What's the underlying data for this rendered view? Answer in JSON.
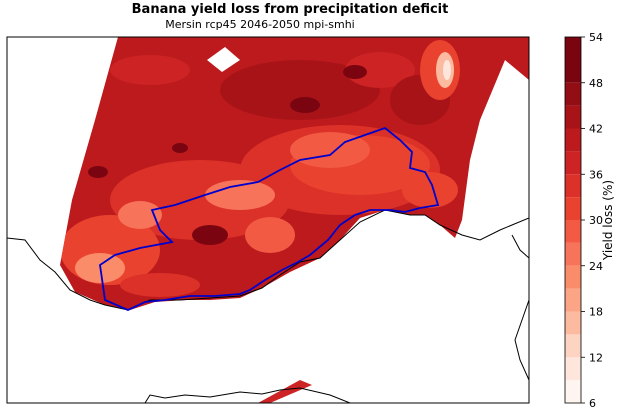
{
  "title": "Banana yield loss from precipitation deficit",
  "subtitle": "Mersin rcp45 2046-2050 mpi-smhi",
  "colorbar": {
    "label": "Yield loss (%)",
    "ticks": [
      "6",
      "12",
      "18",
      "24",
      "30",
      "36",
      "42",
      "48",
      "54"
    ],
    "levels": [
      {
        "from": 6,
        "to": 9,
        "color": "#fff5f0"
      },
      {
        "from": 9,
        "to": 12,
        "color": "#fee6dc"
      },
      {
        "from": 12,
        "to": 15,
        "color": "#fdd3c1"
      },
      {
        "from": 15,
        "to": 18,
        "color": "#fcbba1"
      },
      {
        "from": 18,
        "to": 21,
        "color": "#fca486"
      },
      {
        "from": 21,
        "to": 24,
        "color": "#fb8c6a"
      },
      {
        "from": 24,
        "to": 27,
        "color": "#f7735a"
      },
      {
        "from": 27,
        "to": 30,
        "color": "#f25a44"
      },
      {
        "from": 30,
        "to": 33,
        "color": "#e9422f"
      },
      {
        "from": 33,
        "to": 36,
        "color": "#dc3128"
      },
      {
        "from": 36,
        "to": 39,
        "color": "#cd2324"
      },
      {
        "from": 39,
        "to": 42,
        "color": "#bc1a1d"
      },
      {
        "from": 42,
        "to": 45,
        "color": "#a81318"
      },
      {
        "from": 45,
        "to": 48,
        "color": "#930d14"
      },
      {
        "from": 48,
        "to": 54,
        "color": "#7a0510"
      }
    ]
  },
  "region_outline_color": "#0000cc"
}
